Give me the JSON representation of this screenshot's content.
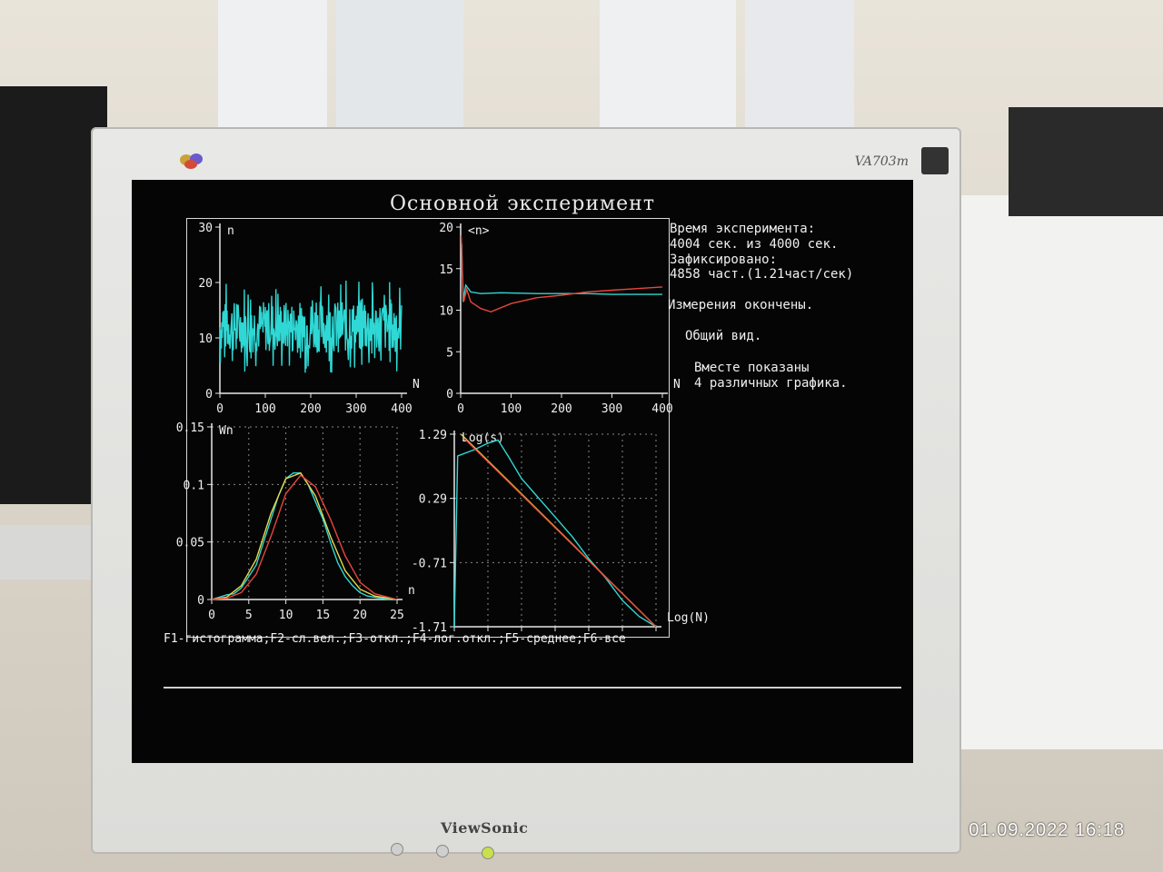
{
  "monitor": {
    "model": "VA703m",
    "brand": "ViewSonic",
    "photo_timestamp": "01.09.2022  16:18"
  },
  "screen": {
    "title": "Основной эксперимент",
    "info_lines": [
      "Время эксперимента:",
      "4004 сек. из 4000 сек.",
      "Зафиксировано:",
      "4858 част.(1.21част/сек)"
    ],
    "status": "Измерения окончены.",
    "view_mode": "Общий вид.",
    "note_lines": [
      "Вместе показаны",
      "4 различных графика."
    ],
    "function_keys": "F1-гистограмма;F2-сл.вел.;F3-откл.;F4-лог.откл.;F5-среднее;F6-все",
    "colors": {
      "background": "#050505",
      "cyan": "#2fd8d4",
      "red": "#e8463c",
      "yellow": "#e8d84a",
      "text": "#f0f0f0"
    }
  },
  "chart_data": [
    {
      "type": "line",
      "name": "random-variable",
      "ylabel": "n",
      "xlabel": "N",
      "xlim": [
        0,
        400
      ],
      "ylim": [
        0,
        30
      ],
      "x_ticks": [
        "0",
        "100",
        "200",
        "300",
        "400"
      ],
      "y_ticks": [
        "0",
        "10",
        "20",
        "30"
      ],
      "series": [
        {
          "color": "#2fd8d4",
          "mean": 12,
          "range": [
            4,
            21
          ],
          "points": 380
        }
      ]
    },
    {
      "type": "line",
      "name": "running-mean",
      "ylabel": "<n>",
      "xlabel": "N",
      "xlim": [
        0,
        400
      ],
      "ylim": [
        0,
        20
      ],
      "x_ticks": [
        "0",
        "100",
        "200",
        "300",
        "400"
      ],
      "y_ticks": [
        "0",
        "5",
        "10",
        "15",
        "20"
      ],
      "series": [
        {
          "color": "#2fd8d4",
          "x": [
            2,
            5,
            10,
            20,
            40,
            80,
            150,
            250,
            300,
            400
          ],
          "y": [
            18,
            11,
            13,
            12.2,
            12,
            12.1,
            12.0,
            12.0,
            11.9,
            11.9
          ]
        },
        {
          "color": "#e8463c",
          "x": [
            1,
            3,
            6,
            12,
            20,
            40,
            60,
            100,
            150,
            200,
            250,
            300,
            350,
            400
          ],
          "y": [
            19,
            15,
            11,
            12.5,
            11,
            10.2,
            9.8,
            10.8,
            11.5,
            11.8,
            12.2,
            12.4,
            12.6,
            12.8
          ]
        }
      ]
    },
    {
      "type": "line",
      "name": "histogram",
      "ylabel": "Wn",
      "xlabel": "n",
      "xlim": [
        0,
        25
      ],
      "ylim": [
        0,
        0.15
      ],
      "x_ticks": [
        "0",
        "5",
        "10",
        "15",
        "20",
        "25"
      ],
      "y_ticks": [
        "0",
        "0.05",
        "0.1",
        "0.15"
      ],
      "series": [
        {
          "color": "#2fd8d4",
          "x": [
            0,
            1,
            2,
            3,
            4,
            5,
            6,
            7,
            8,
            9,
            10,
            11,
            12,
            13,
            14,
            15,
            16,
            17,
            18,
            19,
            20,
            21,
            22,
            23,
            24,
            25
          ],
          "y": [
            0,
            0.002,
            0.004,
            0.005,
            0.01,
            0.02,
            0.03,
            0.05,
            0.07,
            0.09,
            0.105,
            0.11,
            0.11,
            0.1,
            0.085,
            0.07,
            0.05,
            0.032,
            0.02,
            0.012,
            0.006,
            0.003,
            0.002,
            0.001,
            0,
            0
          ]
        },
        {
          "color": "#e8d84a",
          "x": [
            0,
            2,
            4,
            6,
            8,
            10,
            12,
            14,
            16,
            18,
            20,
            22,
            25
          ],
          "y": [
            0,
            0.002,
            0.012,
            0.035,
            0.075,
            0.105,
            0.11,
            0.09,
            0.055,
            0.025,
            0.009,
            0.003,
            0
          ]
        },
        {
          "color": "#e8463c",
          "x": [
            0,
            2,
            4,
            6,
            8,
            10,
            12,
            14,
            16,
            18,
            20,
            22,
            25
          ],
          "y": [
            0,
            0.001,
            0.006,
            0.022,
            0.055,
            0.092,
            0.108,
            0.098,
            0.07,
            0.038,
            0.015,
            0.005,
            0
          ]
        }
      ]
    },
    {
      "type": "line",
      "name": "log-deviation",
      "ylabel": "Log(s)",
      "xlabel": "Log(N)",
      "xlim": [
        0,
        6
      ],
      "ylim": [
        -1.71,
        1.29
      ],
      "x_ticks": [
        "0",
        "1",
        "2",
        "3",
        "4",
        "5",
        "6"
      ],
      "y_ticks": [
        "-1.71",
        "-0.71",
        "0.29",
        "1.29"
      ],
      "series": [
        {
          "color": "#2fd8d4",
          "x": [
            0,
            0.1,
            0.6,
            1.0,
            1.3,
            1.6,
            2.0,
            2.5,
            3.0,
            3.5,
            4.0,
            4.5,
            5.0,
            5.5,
            6.0
          ],
          "y": [
            -1.71,
            0.95,
            1.05,
            1.15,
            1.2,
            0.95,
            0.6,
            0.3,
            0.0,
            -0.3,
            -0.65,
            -0.95,
            -1.3,
            -1.55,
            -1.71
          ]
        },
        {
          "color": "#e8d84a",
          "x": [
            0.2,
            6.0
          ],
          "y": [
            1.29,
            -1.71
          ]
        },
        {
          "color": "#e8463c",
          "x": [
            0.3,
            6.0
          ],
          "y": [
            1.22,
            -1.71
          ]
        }
      ]
    }
  ]
}
